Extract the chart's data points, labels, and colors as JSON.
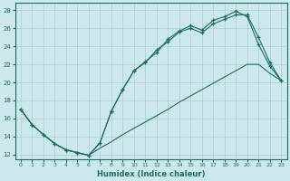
{
  "xlabel": "Humidex (Indice chaleur)",
  "bg_color": "#cce8ec",
  "line_color": "#1a6e6a",
  "grid_color": "#aacdd4",
  "xlim": [
    -0.5,
    23.5
  ],
  "ylim": [
    11.5,
    28.8
  ],
  "xticks": [
    0,
    1,
    2,
    3,
    4,
    5,
    6,
    7,
    8,
    9,
    10,
    11,
    12,
    13,
    14,
    15,
    16,
    17,
    18,
    19,
    20,
    21,
    22,
    23
  ],
  "yticks": [
    12,
    14,
    16,
    18,
    20,
    22,
    24,
    26,
    28
  ],
  "line1_x": [
    0,
    1,
    2,
    3,
    4,
    5,
    6,
    7,
    8,
    9,
    10,
    11,
    12,
    13,
    14,
    15,
    16,
    17,
    18,
    19,
    20,
    21,
    22,
    23
  ],
  "line1_y": [
    17.0,
    15.3,
    14.2,
    13.2,
    12.5,
    12.2,
    11.9,
    13.3,
    16.8,
    19.2,
    21.3,
    22.3,
    23.3,
    24.8,
    25.7,
    26.3,
    25.8,
    26.9,
    27.3,
    27.9,
    27.3,
    24.2,
    21.8,
    20.2
  ],
  "line2_x": [
    0,
    1,
    2,
    3,
    4,
    5,
    6,
    7,
    8,
    9,
    10,
    11,
    12,
    13,
    14,
    15,
    16,
    17,
    18,
    19,
    20,
    21,
    22,
    23
  ],
  "line2_y": [
    17.0,
    15.3,
    14.2,
    13.2,
    12.5,
    12.2,
    11.9,
    13.3,
    16.8,
    19.2,
    21.3,
    22.2,
    23.6,
    24.5,
    25.6,
    26.0,
    25.5,
    26.5,
    27.0,
    27.5,
    27.5,
    25.0,
    22.2,
    20.2
  ],
  "line3_x": [
    0,
    1,
    2,
    3,
    4,
    5,
    6,
    7,
    8,
    9,
    10,
    11,
    12,
    13,
    14,
    15,
    16,
    17,
    18,
    19,
    20,
    21,
    22,
    23
  ],
  "line3_y": [
    17.0,
    15.3,
    14.2,
    13.2,
    12.5,
    12.2,
    11.9,
    12.7,
    13.4,
    14.2,
    14.9,
    15.6,
    16.3,
    17.0,
    17.8,
    18.5,
    19.2,
    19.9,
    20.6,
    21.3,
    22.0,
    22.0,
    21.0,
    20.2
  ]
}
